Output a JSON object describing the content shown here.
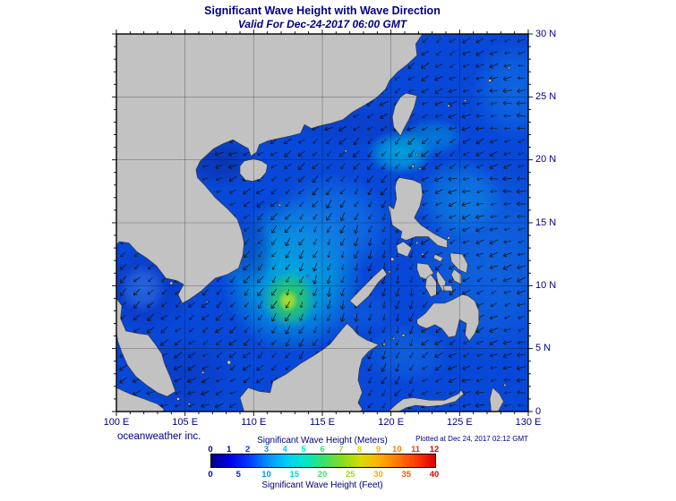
{
  "header": {
    "title": "Significant Wave Height with Wave Direction",
    "subtitle": "Valid For Dec-24-2017 06:00 GMT"
  },
  "axes": {
    "x_ticks": [
      "100 E",
      "105 E",
      "110 E",
      "115 E",
      "120 E",
      "125 E",
      "130 E"
    ],
    "y_ticks": [
      "30 N",
      "25 N",
      "20 N",
      "15 N",
      "10 N",
      "5 N",
      "0"
    ]
  },
  "footer": {
    "credit": "oceanweather inc.",
    "plotted": "Plotted at Dec 24, 2017 02:12 GMT"
  },
  "legend": {
    "meters_title": "Significant Wave Height (Meters)",
    "feet_title": "Significant Wave Height (Feet)",
    "meters_ticks": [
      {
        "label": "0",
        "color": "#000085"
      },
      {
        "label": "1",
        "color": "#0000e8"
      },
      {
        "label": "2",
        "color": "#0038ff"
      },
      {
        "label": "3",
        "color": "#0090ff"
      },
      {
        "label": "4",
        "color": "#00ccf8"
      },
      {
        "label": "5",
        "color": "#00e8c8"
      },
      {
        "label": "6",
        "color": "#38e070"
      },
      {
        "label": "7",
        "color": "#86dc20"
      },
      {
        "label": "8",
        "color": "#d6dc00"
      },
      {
        "label": "9",
        "color": "#ffb000"
      },
      {
        "label": "10",
        "color": "#ff7800"
      },
      {
        "label": "11",
        "color": "#ff3800"
      },
      {
        "label": "12",
        "color": "#dc0000"
      }
    ],
    "feet_ticks": [
      {
        "label": "0",
        "color": "#000085"
      },
      {
        "label": "5",
        "color": "#0024f0"
      },
      {
        "label": "10",
        "color": "#0094ff"
      },
      {
        "label": "15",
        "color": "#00d8d0"
      },
      {
        "label": "20",
        "color": "#40e068"
      },
      {
        "label": "25",
        "color": "#9cdc14"
      },
      {
        "label": "30",
        "color": "#fcaa00"
      },
      {
        "label": "35",
        "color": "#ff5800"
      },
      {
        "label": "40",
        "color": "#dc0000"
      }
    ],
    "gradient": [
      "#000085",
      "#0000e8",
      "#0038ff",
      "#0090ff",
      "#00ccf8",
      "#00e8c8",
      "#38e070",
      "#86dc20",
      "#d6dc00",
      "#ffb000",
      "#ff7800",
      "#ff3800",
      "#dc0000"
    ]
  },
  "colors": {
    "sea": "#0848d8",
    "land": "#c2c2c2",
    "coast": "#333333",
    "text": "#000080",
    "frame": "#000000"
  }
}
